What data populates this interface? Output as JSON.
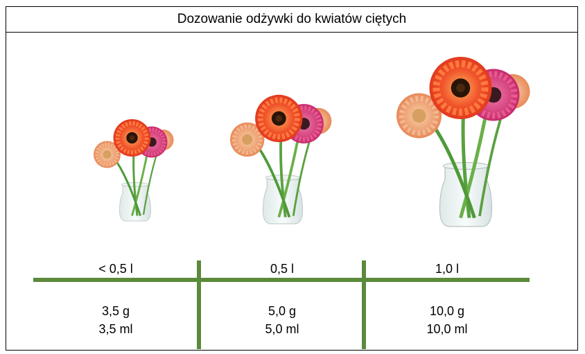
{
  "title": "Dozowanie odżywki do kwiatów ciętych",
  "columns": [
    {
      "volume": "< 0,5 l",
      "grams": "3,5 g",
      "ml": "3,5 ml"
    },
    {
      "volume": "0,5 l",
      "grams": "5,0 g",
      "ml": "5,0 ml"
    },
    {
      "volume": "1,0 l",
      "grams": "10,0 g",
      "ml": "10,0 ml"
    }
  ],
  "colors": {
    "grid_line": "#5a8a3a",
    "flower_orange": "#f0532a",
    "flower_pink": "#d93a7a",
    "flower_peach": "#f0a07a",
    "stem": "#5aa040"
  },
  "icons": [
    "flower-vase-small",
    "flower-vase-medium",
    "flower-vase-large"
  ]
}
